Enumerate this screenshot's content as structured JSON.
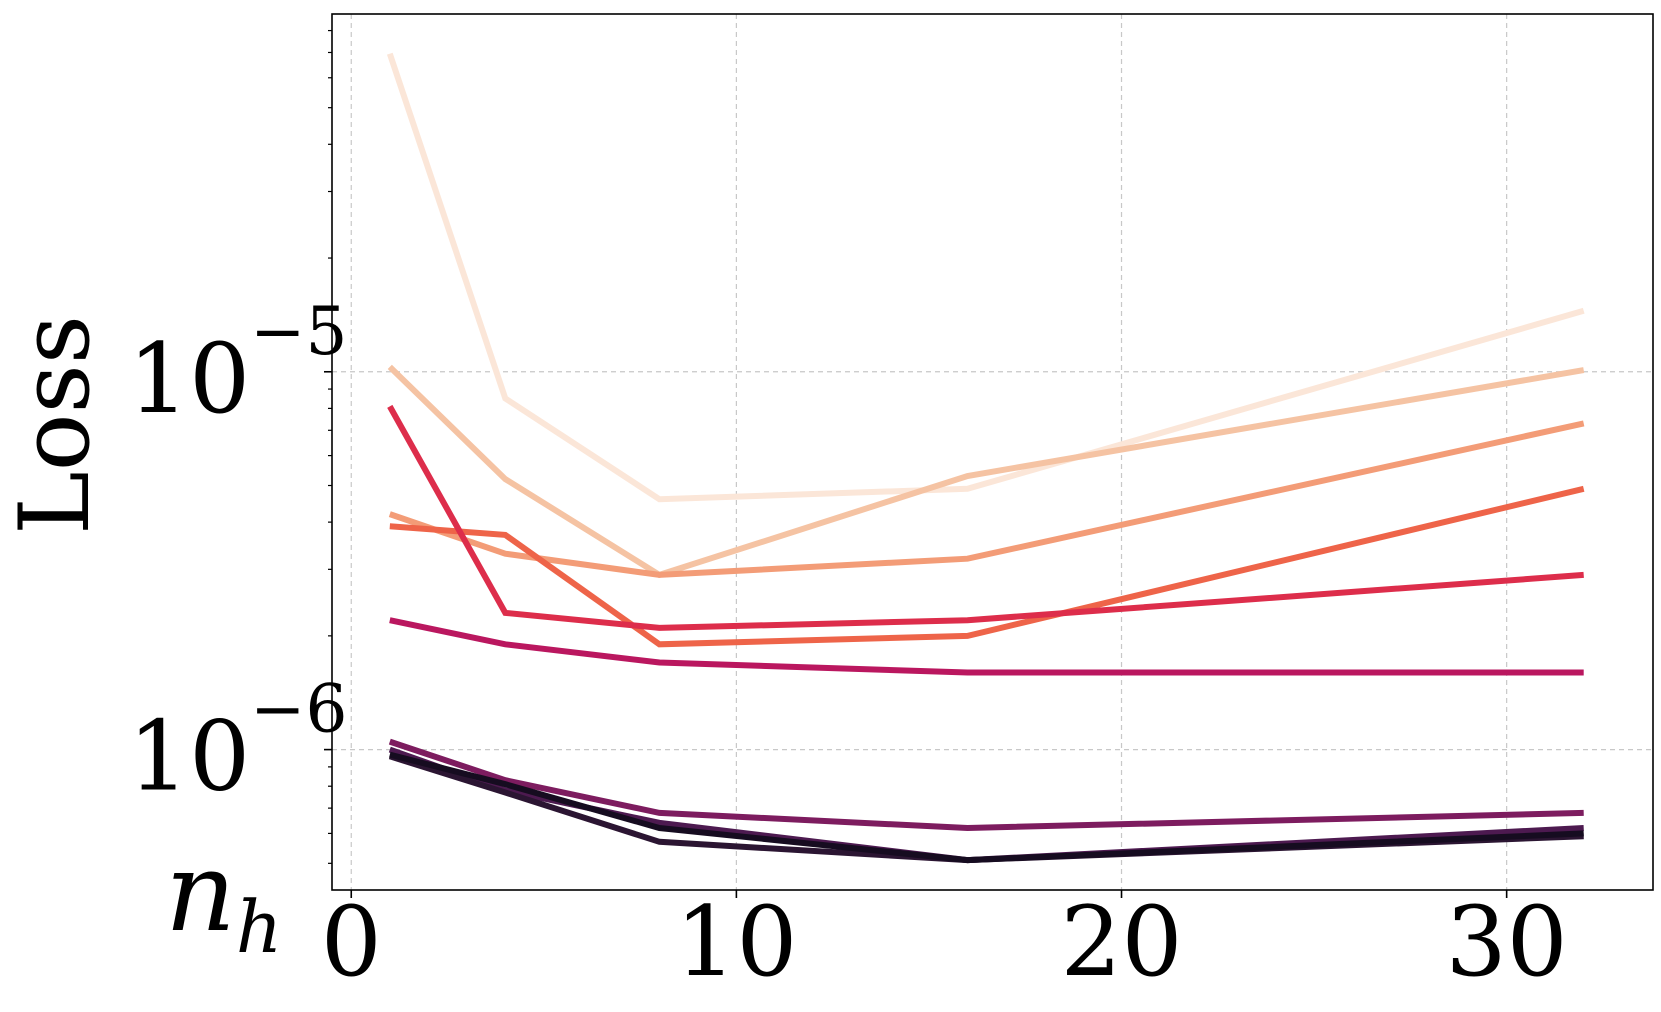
{
  "chart_data": {
    "type": "line",
    "title": "",
    "xlabel": "n",
    "xlabel_sub": "h",
    "ylabel": "Loss",
    "xscale": "linear",
    "yscale": "log",
    "xlim": [
      -0.5,
      33.8
    ],
    "ylim": [
      4.25e-07,
      8.85e-05
    ],
    "grid": true,
    "legend": "none",
    "x": [
      1,
      4,
      8,
      16,
      32
    ],
    "xticks": [
      {
        "value": 0,
        "label": "0"
      },
      {
        "value": 10,
        "label": "10"
      },
      {
        "value": 20,
        "label": "20"
      },
      {
        "value": 30,
        "label": "30"
      }
    ],
    "yticks": [
      {
        "value": 1e-06,
        "base": "10",
        "exp": "−6"
      },
      {
        "value": 1e-05,
        "base": "10",
        "exp": "−5"
      }
    ],
    "series": [
      {
        "color": "#fbe6d8",
        "values": [
          6.95e-05,
          8.5e-06,
          4.6e-06,
          4.9e-06,
          1.45e-05
        ]
      },
      {
        "color": "#f5c3a3",
        "values": [
          1.03e-05,
          5.2e-06,
          2.9e-06,
          5.3e-06,
          1.01e-05
        ]
      },
      {
        "color": "#f39c77",
        "values": [
          4.2e-06,
          3.3e-06,
          2.9e-06,
          3.2e-06,
          7.3e-06
        ]
      },
      {
        "color": "#ee6449",
        "values": [
          3.9e-06,
          3.7e-06,
          1.9e-06,
          2e-06,
          4.9e-06
        ]
      },
      {
        "color": "#dd2d4b",
        "values": [
          8.1e-06,
          2.3e-06,
          2.1e-06,
          2.2e-06,
          2.9e-06
        ]
      },
      {
        "color": "#ba175f",
        "values": [
          2.2e-06,
          1.9e-06,
          1.7e-06,
          1.6e-06,
          1.6e-06
        ]
      },
      {
        "color": "#7d1c5f",
        "values": [
          1.05e-06,
          8.3e-07,
          6.8e-07,
          6.2e-07,
          6.8e-07
        ]
      },
      {
        "color": "#4d1a50",
        "values": [
          1e-06,
          7.8e-07,
          6.4e-07,
          5.1e-07,
          6.2e-07
        ]
      },
      {
        "color": "#2b1532",
        "values": [
          9.6e-07,
          7.7e-07,
          5.7e-07,
          5.1e-07,
          5.9e-07
        ]
      },
      {
        "color": "#160c20",
        "values": [
          9.7e-07,
          8.1e-07,
          6.2e-07,
          5.1e-07,
          6e-07
        ]
      }
    ]
  }
}
